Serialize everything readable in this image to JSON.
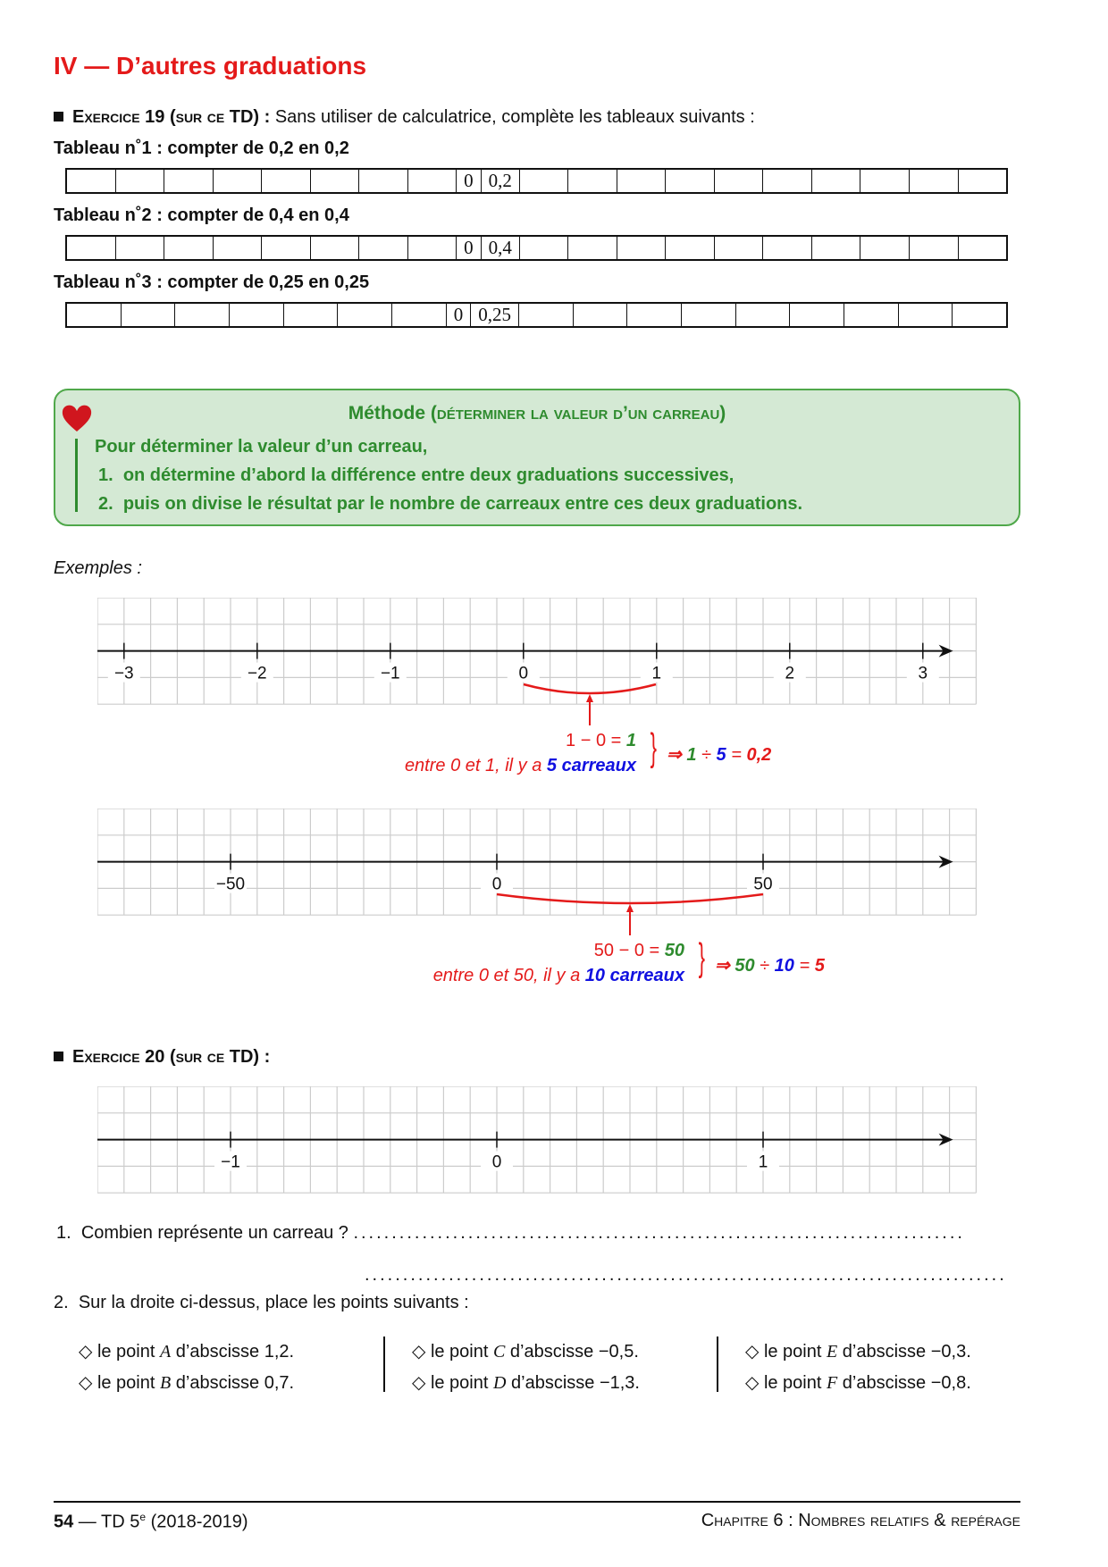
{
  "section_title": "IV — D’autres graduations",
  "exercise19": {
    "label": "Exercice 19",
    "paren": "(sur ce TD)",
    "colon": " :",
    "instruction": "Sans utiliser de calculatrice, complète les tableaux suivants :"
  },
  "tables": [
    {
      "label": "Tableau n˚1 : compter de 0,2 en 0,2",
      "cells": [
        "",
        "",
        "",
        "",
        "",
        "",
        "",
        "",
        "0",
        "0,2",
        "",
        "",
        "",
        "",
        "",
        "",
        "",
        "",
        "",
        ""
      ]
    },
    {
      "label": "Tableau n˚2 : compter de 0,4 en 0,4",
      "cells": [
        "",
        "",
        "",
        "",
        "",
        "",
        "",
        "",
        "0",
        "0,4",
        "",
        "",
        "",
        "",
        "",
        "",
        "",
        "",
        "",
        ""
      ]
    },
    {
      "label": "Tableau n˚3 : compter de 0,25 en 0,25",
      "cells": [
        "",
        "",
        "",
        "",
        "",
        "",
        "",
        "0",
        "0,25",
        "",
        "",
        "",
        "",
        "",
        "",
        "",
        "",
        ""
      ]
    }
  ],
  "method": {
    "title": "Méthode",
    "subtitle": "(déterminer la valeur d’un carreau)",
    "intro": "Pour déterminer la valeur d’un carreau,",
    "steps": [
      {
        "n": "1.",
        "text": "on détermine d’abord la différence entre deux graduations successives,"
      },
      {
        "n": "2.",
        "text": "puis on divise le résultat par le nombre de carreaux entre ces deux graduations."
      }
    ],
    "icon": "heart-icon"
  },
  "examples_label": "Exemples :",
  "number_lines": [
    {
      "ticks": [
        {
          "value": -3,
          "label": "−3"
        },
        {
          "value": -2,
          "label": "−2"
        },
        {
          "value": -1,
          "label": "−1"
        },
        {
          "value": 0,
          "label": "0"
        },
        {
          "value": 1,
          "label": "1"
        },
        {
          "value": 2,
          "label": "2"
        },
        {
          "value": 3,
          "label": "3"
        }
      ],
      "units_per_cell": 0.2
    },
    {
      "ticks": [
        {
          "value": -50,
          "label": "−50"
        },
        {
          "value": 0,
          "label": "0"
        },
        {
          "value": 50,
          "label": "50"
        }
      ],
      "units_per_cell": 5
    },
    {
      "ticks": [
        {
          "value": -1,
          "label": "−1"
        },
        {
          "value": 0,
          "label": "0"
        },
        {
          "value": 1,
          "label": "1"
        }
      ],
      "units_per_cell": 0.1
    }
  ],
  "example1": {
    "diff_a": "1 − 0 = ",
    "diff_b": "1",
    "count_a": "entre 0 et 1, il y a ",
    "count_b": "5 carreaux",
    "brace": "}",
    "res_arrow": "⇒ ",
    "res_a": "1",
    "res_div": " ÷ ",
    "res_b": "5",
    "res_eq": " = ",
    "res_c": "0,2"
  },
  "example2": {
    "diff_a": "50 − 0 = ",
    "diff_b": "50",
    "count_a": "entre 0 et 50, il y a ",
    "count_b": "10 carreaux",
    "brace": "}",
    "res_arrow": "⇒ ",
    "res_a": "50",
    "res_div": " ÷ ",
    "res_b": "10",
    "res_eq": " = ",
    "res_c": "5"
  },
  "exercise20": {
    "label": "Exercice 20",
    "paren": "(sur ce TD)",
    "colon": " :"
  },
  "questions": {
    "q1_num": "1.",
    "q1": "Combien représente un carreau ?",
    "q1_dots": "................................................................................",
    "q1_dots2": "....................................................................................",
    "q2_num": "2.",
    "q2": "Sur la droite ci-dessus, place les points suivants :"
  },
  "points": [
    [
      {
        "pre": "◇ le point ",
        "name": "A",
        "post": " d’abscisse 1,2."
      },
      {
        "pre": "◇ le point ",
        "name": "B",
        "post": " d’abscisse 0,7."
      }
    ],
    [
      {
        "pre": "◇ le point ",
        "name": "C",
        "post": " d’abscisse −0,5."
      },
      {
        "pre": "◇ le point ",
        "name": "D",
        "post": " d’abscisse −1,3."
      }
    ],
    [
      {
        "pre": "◇ le point ",
        "name": "E",
        "post": " d’abscisse −0,3."
      },
      {
        "pre": "◇ le point ",
        "name": "F",
        "post": " d’abscisse −0,8."
      }
    ]
  ],
  "footer": {
    "page": "54",
    "sep": " — TD 5",
    "sup": "e",
    "year": " (2018-2019)",
    "chapter": "Chapitre 6 : Nombres relatifs & repérage"
  },
  "colors": {
    "red": "#e41a1a",
    "green": "#2e8b2e",
    "blue": "#1010e0",
    "method_bg": "#d4e9d4",
    "grid": "#cccccc"
  }
}
